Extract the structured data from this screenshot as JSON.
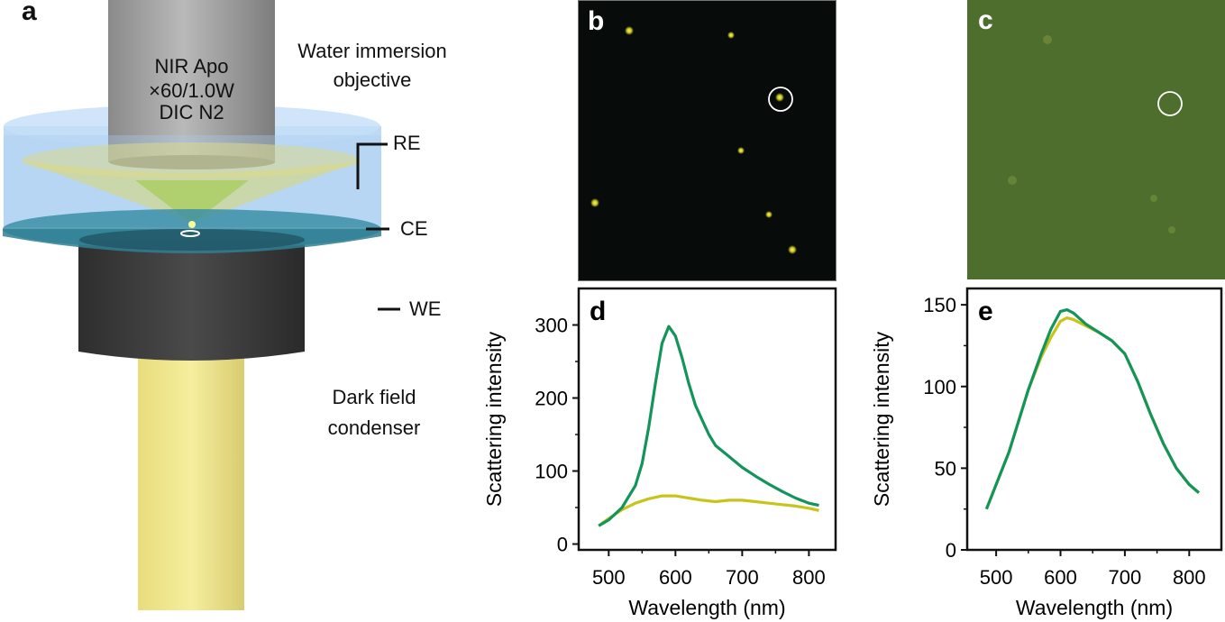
{
  "panel_a": {
    "letter": "a",
    "objective_lines": [
      "NIR Apo",
      "×60/1.0W",
      "DIC N2"
    ],
    "objective_label": [
      "Water immersion",
      "objective"
    ],
    "electrodes": {
      "re": "RE",
      "ce": "CE",
      "we": "WE"
    },
    "condenser_label": [
      "Dark field",
      "condenser"
    ]
  },
  "panel_b": {
    "letter": "b",
    "background": "#070b0a"
  },
  "panel_c": {
    "letter": "c",
    "background": "#4e6e2e"
  },
  "chart_data": [
    {
      "panel": "d",
      "type": "line",
      "xlabel": "Wavelength (nm)",
      "ylabel": "Scattering intensity",
      "xlim": [
        455,
        840
      ],
      "ylim": [
        -8,
        350
      ],
      "xticks": [
        500,
        600,
        700,
        800
      ],
      "yticks": [
        0,
        100,
        200,
        300
      ],
      "series": [
        {
          "name": "yellow",
          "color": "#c8c41a",
          "x": [
            485,
            500,
            520,
            540,
            560,
            580,
            600,
            620,
            640,
            660,
            680,
            700,
            720,
            740,
            760,
            780,
            800,
            815
          ],
          "y": [
            25,
            35,
            47,
            56,
            62,
            66,
            66,
            63,
            60,
            58,
            60,
            60,
            58,
            56,
            54,
            52,
            49,
            46
          ]
        },
        {
          "name": "green",
          "color": "#12945a",
          "x": [
            485,
            500,
            520,
            540,
            550,
            560,
            570,
            580,
            590,
            600,
            610,
            620,
            630,
            640,
            650,
            660,
            680,
            700,
            720,
            740,
            760,
            780,
            800,
            815
          ],
          "y": [
            25,
            33,
            50,
            80,
            110,
            160,
            220,
            275,
            298,
            285,
            255,
            220,
            190,
            170,
            150,
            135,
            120,
            105,
            93,
            82,
            72,
            63,
            56,
            53
          ]
        }
      ]
    },
    {
      "panel": "e",
      "type": "line",
      "xlabel": "Wavelength (nm)",
      "ylabel": "Scattering intensity",
      "xlim": [
        455,
        850
      ],
      "ylim": [
        0,
        160
      ],
      "xticks": [
        500,
        600,
        700,
        800
      ],
      "yticks": [
        0,
        50,
        100,
        150
      ],
      "series": [
        {
          "name": "yellow",
          "color": "#c8c41a",
          "x": [
            485,
            520,
            550,
            570,
            585,
            600,
            610,
            620,
            640,
            660,
            680,
            700,
            720,
            740,
            760,
            780,
            800,
            815
          ],
          "y": [
            25,
            60,
            98,
            118,
            130,
            140,
            142,
            141,
            137,
            133,
            128,
            120,
            103,
            83,
            65,
            50,
            40,
            35
          ]
        },
        {
          "name": "green",
          "color": "#12945a",
          "x": [
            485,
            520,
            550,
            570,
            585,
            600,
            610,
            620,
            640,
            660,
            680,
            700,
            720,
            740,
            760,
            780,
            800,
            815
          ],
          "y": [
            25,
            60,
            98,
            120,
            135,
            146,
            147,
            145,
            138,
            133,
            128,
            120,
            103,
            83,
            65,
            50,
            40,
            35
          ]
        }
      ]
    }
  ]
}
